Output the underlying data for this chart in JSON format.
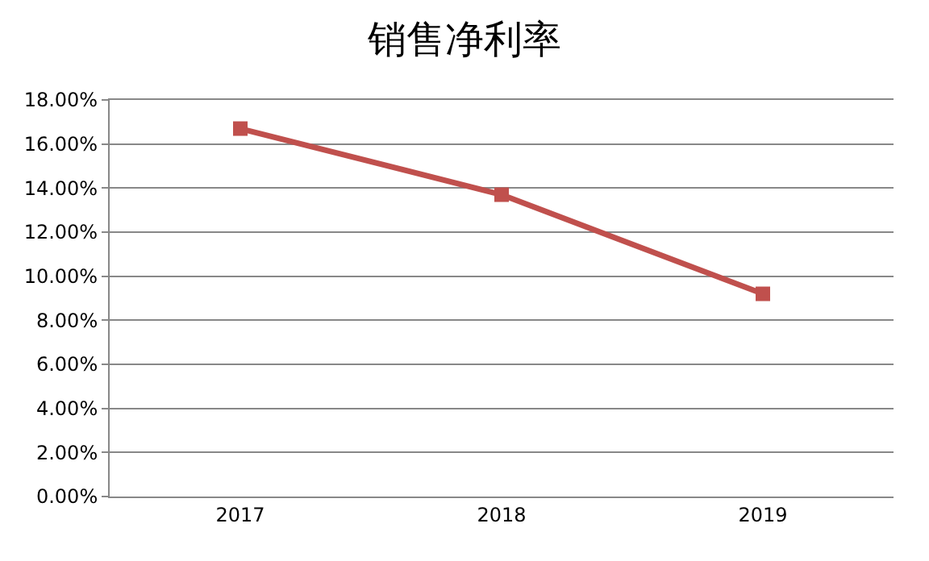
{
  "chart_data": {
    "type": "line",
    "title": "销售净利率",
    "categories": [
      "2017",
      "2018",
      "2019"
    ],
    "series": [
      {
        "color": "#c0504d",
        "values": [
          16.7,
          13.7,
          9.2
        ]
      }
    ],
    "ylim": [
      0,
      18
    ],
    "yticks": [
      {
        "value": 0,
        "label": "0.00%"
      },
      {
        "value": 2,
        "label": "2.00%"
      },
      {
        "value": 4,
        "label": "4.00%"
      },
      {
        "value": 6,
        "label": "6.00%"
      },
      {
        "value": 8,
        "label": "8.00%"
      },
      {
        "value": 10,
        "label": "10.00%"
      },
      {
        "value": 12,
        "label": "12.00%"
      },
      {
        "value": 14,
        "label": "14.00%"
      },
      {
        "value": 16,
        "label": "16.00%"
      },
      {
        "value": 18,
        "label": "18.00%"
      }
    ],
    "grid": "y",
    "marker": "square",
    "line_style": "solid"
  }
}
